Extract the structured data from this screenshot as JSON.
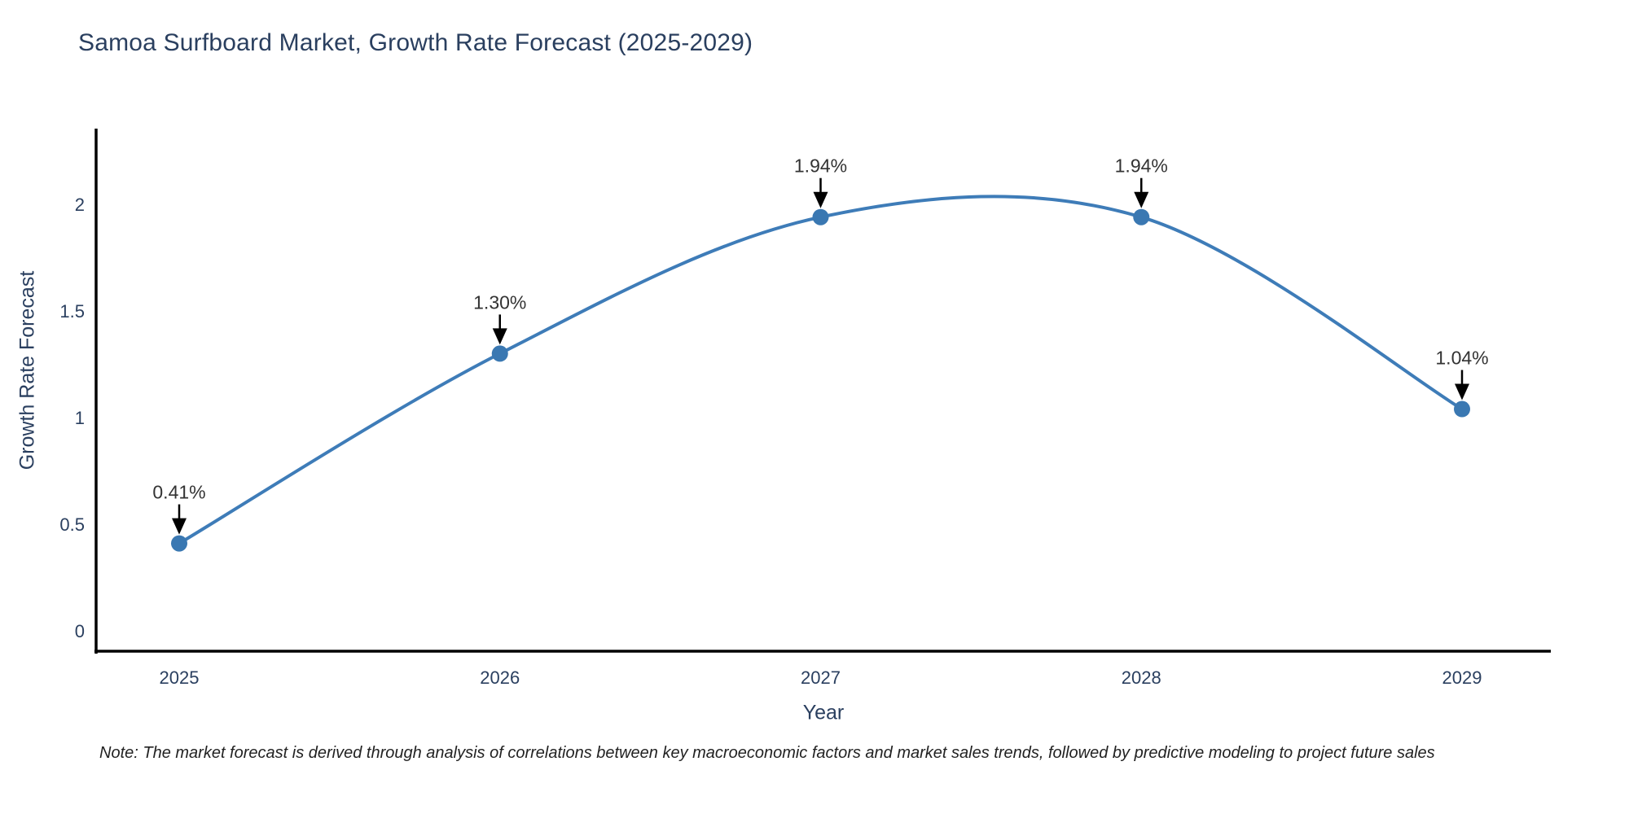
{
  "chart_data": {
    "type": "line",
    "title": "Samoa Surfboard Market, Growth Rate Forecast (2025-2029)",
    "xlabel": "Year",
    "ylabel": "Growth Rate Forecast",
    "x": [
      2025,
      2026,
      2027,
      2028,
      2029
    ],
    "series": [
      {
        "name": "Growth Rate Forecast",
        "values": [
          0.41,
          1.3,
          1.94,
          1.94,
          1.04
        ]
      }
    ],
    "point_labels": [
      "0.41%",
      "1.30%",
      "1.94%",
      "1.94%",
      "1.04%"
    ],
    "x_tick_labels": [
      "2025",
      "2026",
      "2027",
      "2028",
      "2029"
    ],
    "y_tick_values": [
      0,
      0.5,
      1,
      1.5,
      2
    ],
    "y_tick_labels": [
      "0",
      "0.5",
      "1",
      "1.5",
      "2"
    ],
    "ylim": [
      -0.095,
      2.355
    ],
    "grid": false,
    "legend": "none",
    "line_shape": "spline",
    "colors": {
      "line": "#3e7cb8",
      "marker": "#3a78b2",
      "axis": "#000000",
      "tick_label": "#2a3f5f",
      "title": "#2a3f5f",
      "annotation_text": "#333333",
      "annotation_arrow": "#000000",
      "background": "#ffffff"
    },
    "note": "Note: The market forecast is derived through analysis of correlations between key macroeconomic factors and market sales trends, followed by predictive modeling to project future sales"
  }
}
